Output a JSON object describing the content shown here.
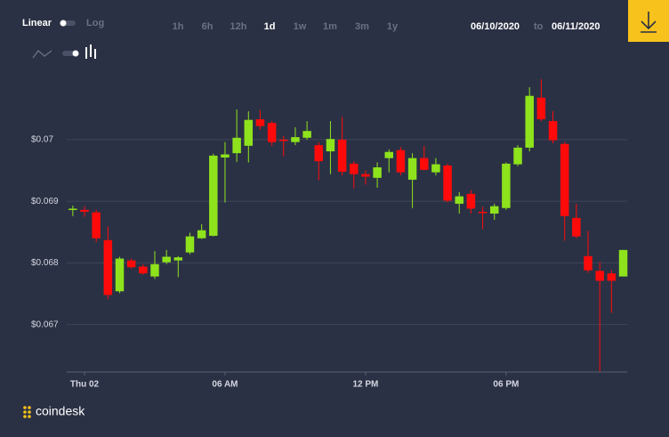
{
  "toolbar": {
    "scale": [
      "Linear",
      "Log"
    ],
    "intervals": [
      "1h",
      "6h",
      "12h",
      "1d",
      "1w",
      "1m",
      "3m",
      "1y"
    ],
    "active_interval": 3,
    "date_from": "06/10/2020",
    "date_to_label": "to",
    "date_to": "06/11/2020"
  },
  "brand": "coindesk",
  "chart_data": {
    "type": "candlestick",
    "x": [
      -0.5,
      0,
      0.5,
      1,
      1.5,
      2,
      2.5,
      3,
      3.5,
      4,
      4.5,
      5,
      5.5,
      6,
      6.5,
      7,
      7.5,
      8,
      8.5,
      9,
      9.5,
      10,
      10.5,
      11,
      11.5,
      12,
      12.5,
      13,
      13.5,
      14,
      14.5,
      15,
      15.5,
      16,
      16.5,
      17,
      17.5,
      18,
      18.5,
      19,
      19.5,
      20,
      20.5,
      21,
      21.5,
      22,
      22.5,
      23
    ],
    "open": [
      0.06887,
      0.06886,
      0.06882,
      0.06837,
      0.06754,
      0.06804,
      0.06794,
      0.06778,
      0.06801,
      0.06804,
      0.06817,
      0.0684,
      0.06844,
      0.06971,
      0.06978,
      0.0699,
      0.07033,
      0.07027,
      0.07,
      0.06996,
      0.07003,
      0.06991,
      0.06981,
      0.07,
      0.06961,
      0.06944,
      0.06938,
      0.0697,
      0.06983,
      0.06935,
      0.0697,
      0.06947,
      0.06958,
      0.06896,
      0.06912,
      0.06883,
      0.0688,
      0.06889,
      0.0696,
      0.06987,
      0.07068,
      0.0703,
      0.06993,
      0.06873,
      0.06811,
      0.06787,
      0.06783,
      0.06778
    ],
    "high": [
      0.06893,
      0.06892,
      0.06886,
      0.06859,
      0.0681,
      0.06807,
      0.06798,
      0.06819,
      0.06821,
      0.06811,
      0.06849,
      0.06863,
      0.06977,
      0.06996,
      0.07049,
      0.07046,
      0.07048,
      0.0703,
      0.07006,
      0.0702,
      0.0703,
      0.06996,
      0.0703,
      0.07037,
      0.06965,
      0.0695,
      0.06963,
      0.06984,
      0.06988,
      0.06978,
      0.0699,
      0.0697,
      0.06961,
      0.06915,
      0.06918,
      0.06891,
      0.06896,
      0.06963,
      0.06991,
      0.07085,
      0.07098,
      0.07046,
      0.06996,
      0.06896,
      0.06852,
      0.06801,
      0.06788,
      0.06821
    ],
    "low": [
      0.06876,
      0.06875,
      0.06834,
      0.06741,
      0.06751,
      0.06791,
      0.06781,
      0.06774,
      0.06798,
      0.06777,
      0.06814,
      0.06839,
      0.06843,
      0.06898,
      0.06964,
      0.06963,
      0.07016,
      0.0699,
      0.06973,
      0.06991,
      0.07,
      0.06934,
      0.06944,
      0.06942,
      0.06921,
      0.06927,
      0.06922,
      0.06947,
      0.06942,
      0.06889,
      0.0695,
      0.06942,
      0.06898,
      0.0688,
      0.0688,
      0.06855,
      0.0687,
      0.06886,
      0.06957,
      0.06981,
      0.0703,
      0.06994,
      0.06836,
      0.0684,
      0.06784,
      0.06624,
      0.06719,
      0.06778
    ],
    "close": [
      0.06888,
      0.06883,
      0.0684,
      0.06748,
      0.06807,
      0.06793,
      0.06783,
      0.06798,
      0.0681,
      0.06809,
      0.06843,
      0.06853,
      0.06974,
      0.06976,
      0.07003,
      0.07032,
      0.07022,
      0.06996,
      0.06999,
      0.07004,
      0.07014,
      0.06965,
      0.07001,
      0.06948,
      0.06944,
      0.0694,
      0.06955,
      0.0698,
      0.06947,
      0.0697,
      0.06951,
      0.0696,
      0.06901,
      0.06908,
      0.06888,
      0.06882,
      0.06892,
      0.06961,
      0.06987,
      0.07071,
      0.07033,
      0.06999,
      0.06876,
      0.06843,
      0.06788,
      0.06771,
      0.06771,
      0.06821
    ],
    "up_color": "#8ee31c",
    "down_color": "#ff0a0a",
    "xlim": [
      -0.76,
      23.17
    ],
    "xticks": [
      {
        "value": 0,
        "label": "Thu 02"
      },
      {
        "value": 6,
        "label": "06 AM"
      },
      {
        "value": 12,
        "label": "12 PM"
      },
      {
        "value": 18,
        "label": "06 PM"
      }
    ],
    "ylim": [
      0.06623,
      0.07111
    ],
    "yticks": [
      {
        "value": 0.067,
        "label": "$0.067"
      },
      {
        "value": 0.068,
        "label": "$0.068"
      },
      {
        "value": 0.069,
        "label": "$0.069"
      },
      {
        "value": 0.07,
        "label": "$0.07"
      }
    ],
    "grid": true
  }
}
